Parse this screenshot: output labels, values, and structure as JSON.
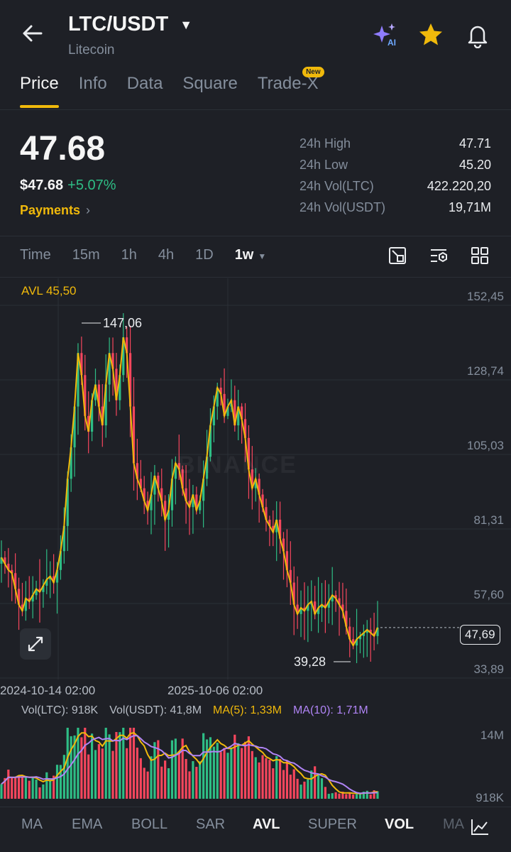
{
  "header": {
    "title": "LTC/USDT",
    "subtitle": "Litecoin",
    "ai_badge": "AI"
  },
  "tabs": [
    {
      "label": "Price",
      "active": true
    },
    {
      "label": "Info"
    },
    {
      "label": "Data"
    },
    {
      "label": "Square"
    },
    {
      "label": "Trade-X",
      "badge": "New"
    }
  ],
  "price": {
    "last": "47.68",
    "usd": "$47.68",
    "change": "+5.07%",
    "payments_label": "Payments"
  },
  "stats": [
    {
      "label": "24h High",
      "value": "47.71"
    },
    {
      "label": "24h Low",
      "value": "45.20"
    },
    {
      "label": "24h Vol(LTC)",
      "value": "422.220,20"
    },
    {
      "label": "24h Vol(USDT)",
      "value": "19,71M"
    }
  ],
  "timeframes": [
    {
      "label": "Time"
    },
    {
      "label": "15m"
    },
    {
      "label": "1h"
    },
    {
      "label": "4h"
    },
    {
      "label": "1D"
    },
    {
      "label": "1w",
      "active": true
    }
  ],
  "icons": {
    "chart_tools": [
      "drawing-icon",
      "settings-icon",
      "grid-icon"
    ]
  },
  "colors": {
    "up": "#2ebd85",
    "down": "#f6465d",
    "accent": "#f0b90b",
    "ma5": "#f0b90b",
    "ma10": "#b084f5"
  },
  "chart_data": {
    "type": "candlestick",
    "avl_label": "AVL 45,50",
    "y_ticks": [
      "152,45",
      "128,74",
      "105,03",
      "81,31",
      "57,60",
      "33,89"
    ],
    "y_ticks_values": [
      152.45,
      128.74,
      105.03,
      81.31,
      57.6,
      33.89
    ],
    "current_price_tag": "47,69",
    "high_annotation": "147,06",
    "low_annotation": "39,28",
    "watermark": "BINANCE",
    "x_labels": [
      "2024-10-14 02:00",
      "2025-10-06 02:00"
    ],
    "closes": [
      70,
      68,
      66,
      65,
      60,
      55,
      53,
      57,
      56,
      58,
      60,
      59,
      61,
      63,
      64,
      62,
      66,
      72,
      80,
      95,
      105,
      118,
      135,
      128,
      115,
      110,
      120,
      125,
      118,
      112,
      125,
      135,
      130,
      120,
      128,
      140,
      135,
      118,
      100,
      95,
      92,
      88,
      85,
      90,
      96,
      92,
      88,
      82,
      85,
      95,
      100,
      98,
      92,
      88,
      86,
      90,
      85,
      88,
      95,
      102,
      112,
      118,
      124,
      122,
      115,
      118,
      120,
      112,
      118,
      114,
      108,
      98,
      92,
      95,
      90,
      86,
      82,
      80,
      78,
      82,
      76,
      72,
      66,
      62,
      55,
      52,
      54,
      53,
      55,
      56,
      52,
      54,
      55,
      54,
      56,
      58,
      57,
      55,
      53,
      48,
      44,
      42,
      44,
      45,
      46,
      47,
      46,
      45,
      47.68
    ],
    "volume_legend": {
      "vol_ltc": "Vol(LTC): 918K",
      "vol_usdt": "Vol(USDT): 41,8M",
      "ma5": "MA(5): 1,33M",
      "ma10": "MA(10): 1,71M"
    },
    "volume_ticks": [
      "14M",
      "918K"
    ]
  },
  "indicators": [
    {
      "label": "MA"
    },
    {
      "label": "EMA"
    },
    {
      "label": "BOLL"
    },
    {
      "label": "SAR"
    },
    {
      "label": "AVL",
      "active": true
    },
    {
      "label": "SUPER"
    },
    {
      "label": "VOL",
      "active": true
    },
    {
      "label": "MA"
    }
  ]
}
